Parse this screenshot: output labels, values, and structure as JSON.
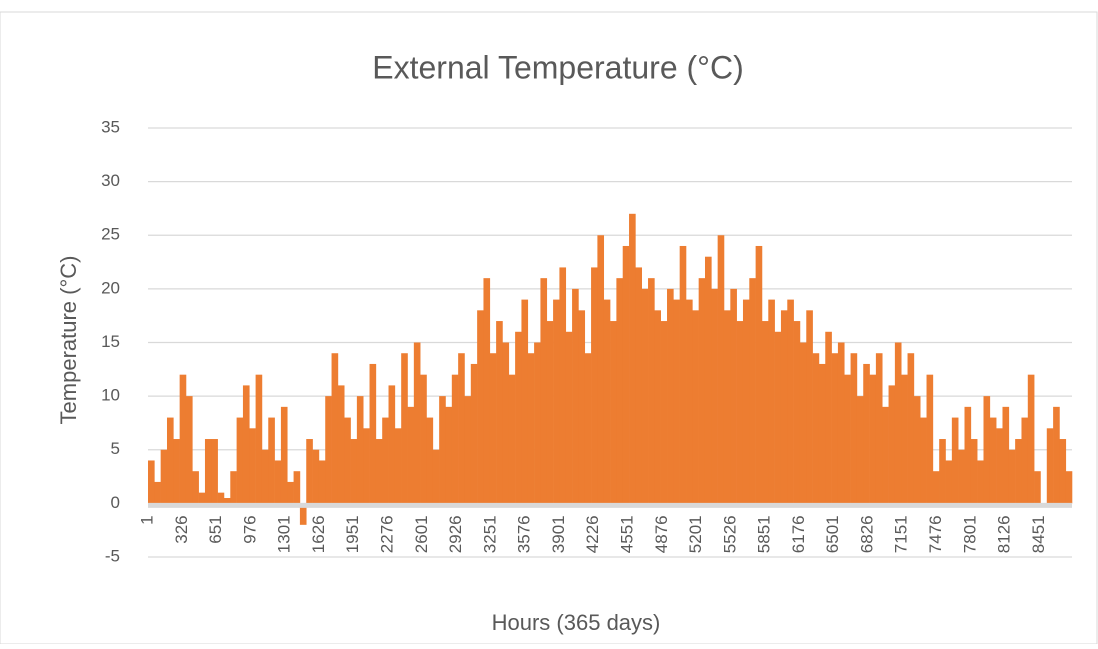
{
  "chart_data": {
    "type": "bar",
    "title": "External Temperature (°C)",
    "x_label": "Hours (365 days)",
    "y_label": "Temperature (°C)",
    "color": "#ed7d31",
    "grid": true,
    "xlim": [
      1,
      8760
    ],
    "xticks": [
      1,
      326,
      651,
      976,
      1301,
      1626,
      1951,
      2276,
      2601,
      2926,
      3251,
      3576,
      3901,
      4226,
      4551,
      4876,
      5201,
      5526,
      5851,
      6176,
      6501,
      6826,
      7151,
      7476,
      7801,
      8126,
      8451
    ],
    "ylim": [
      -5,
      35
    ],
    "yticks": [
      -5,
      0,
      5,
      10,
      15,
      20,
      25,
      30,
      35
    ],
    "x": [
      1,
      61,
      121,
      181,
      241,
      301,
      361,
      421,
      481,
      541,
      601,
      661,
      721,
      781,
      841,
      901,
      961,
      1021,
      1081,
      1141,
      1201,
      1261,
      1321,
      1381,
      1441,
      1501,
      1561,
      1621,
      1681,
      1741,
      1801,
      1861,
      1921,
      1981,
      2041,
      2101,
      2161,
      2221,
      2281,
      2341,
      2401,
      2461,
      2521,
      2581,
      2641,
      2701,
      2761,
      2821,
      2881,
      2941,
      3001,
      3061,
      3121,
      3181,
      3241,
      3301,
      3361,
      3421,
      3481,
      3541,
      3601,
      3661,
      3721,
      3781,
      3841,
      3901,
      3961,
      4021,
      4081,
      4141,
      4201,
      4261,
      4321,
      4381,
      4441,
      4501,
      4561,
      4621,
      4681,
      4741,
      4801,
      4861,
      4921,
      4981,
      5041,
      5101,
      5161,
      5221,
      5281,
      5341,
      5401,
      5461,
      5521,
      5581,
      5641,
      5701,
      5761,
      5821,
      5881,
      5941,
      6001,
      6061,
      6121,
      6181,
      6241,
      6301,
      6361,
      6421,
      6481,
      6541,
      6601,
      6661,
      6721,
      6781,
      6841,
      6901,
      6961,
      7021,
      7081,
      7141,
      7201,
      7261,
      7321,
      7381,
      7441,
      7501,
      7561,
      7621,
      7681,
      7741,
      7801,
      7861,
      7921,
      7981,
      8041,
      8101,
      8161,
      8221,
      8281,
      8341,
      8401,
      8461,
      8521,
      8581,
      8641,
      8701
    ],
    "values": [
      4,
      2,
      5,
      8,
      6,
      12,
      10,
      3,
      1,
      6,
      6,
      1,
      0.5,
      3,
      8,
      11,
      7,
      12,
      5,
      8,
      4,
      9,
      2,
      3,
      -2,
      6,
      5,
      4,
      10,
      14,
      11,
      8,
      6,
      10,
      7,
      13,
      6,
      8,
      11,
      7,
      14,
      9,
      15,
      12,
      8,
      5,
      10,
      9,
      12,
      14,
      10,
      13,
      18,
      21,
      14,
      17,
      15,
      12,
      16,
      19,
      14,
      15,
      21,
      17,
      19,
      22,
      16,
      20,
      18,
      14,
      22,
      25,
      19,
      17,
      21,
      24,
      27,
      22,
      20,
      21,
      18,
      17,
      20,
      19,
      24,
      19,
      18,
      21,
      23,
      20,
      25,
      18,
      20,
      17,
      19,
      21,
      24,
      17,
      19,
      16,
      18,
      19,
      17,
      15,
      18,
      14,
      13,
      16,
      14,
      15,
      12,
      14,
      10,
      13,
      12,
      14,
      9,
      11,
      15,
      12,
      14,
      10,
      8,
      12,
      3,
      6,
      4,
      8,
      5,
      9,
      6,
      4,
      10,
      8,
      7,
      9,
      5,
      6,
      8,
      12,
      3,
      0,
      7,
      9,
      6,
      3
    ]
  }
}
